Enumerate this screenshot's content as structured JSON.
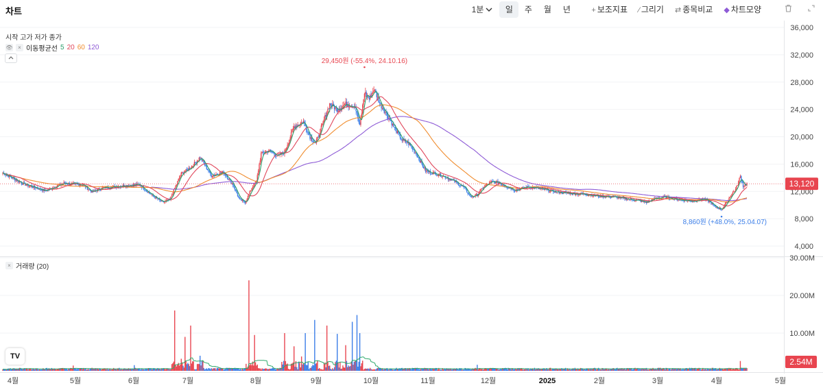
{
  "app": {
    "title": "차트"
  },
  "toolbar": {
    "interval": "1분",
    "periods": [
      "일",
      "주",
      "월",
      "년"
    ],
    "active_period": "일",
    "indicators": "보조지표",
    "draw": "그리기",
    "compare": "종목비교",
    "chart_style": "차트모양",
    "icons": [
      "chevron-down-icon",
      "plus-icon",
      "pencil-icon",
      "compare-icon",
      "diamond-icon",
      "trash-icon",
      "expand-icon"
    ]
  },
  "legend": {
    "ohlc": "시작 고가 저가 종가",
    "ma_label": "이동평균선",
    "ma_periods": [
      {
        "text": "5",
        "color": "#2a9d6b"
      },
      {
        "text": "20",
        "color": "#e0455a"
      },
      {
        "text": "60",
        "color": "#f08c2e"
      },
      {
        "text": "120",
        "color": "#8e5bd6"
      }
    ],
    "volume_label": "거래량 (20)"
  },
  "annotations": {
    "high": "29,450원 (-55.4%, 24.10.16)",
    "low": "8,860원 (+48.0%, 25.04.07)"
  },
  "price_badge": "13,120",
  "volume_badge": "2.54M",
  "logo_text": "TV",
  "colors": {
    "up": "#e8454f",
    "down": "#3b7ee8",
    "ma5": "#2a9d6b",
    "ma20": "#e0455a",
    "ma60": "#f08c2e",
    "ma120": "#8e5bd6",
    "vol_ma": "#2aa86a"
  },
  "chart_data": {
    "type": "candlestick",
    "price_axis": {
      "ticks": [
        "36,000",
        "32,000",
        "28,000",
        "24,000",
        "20,000",
        "16,000",
        "12,000",
        "8,000",
        "4,000"
      ],
      "range": [
        2600,
        36000
      ]
    },
    "volume_axis": {
      "ticks": [
        "30.00M",
        "20.00M",
        "10.00M"
      ],
      "range": [
        0,
        30000000
      ]
    },
    "x_labels": [
      "4월",
      "5월",
      "6월",
      "7월",
      "8월",
      "9월",
      "10월",
      "11월",
      "12월",
      "2025",
      "2월",
      "3월",
      "4월",
      "5월"
    ],
    "last_price": 13120,
    "period_high": 29450,
    "period_low": 8860,
    "close_path": [
      [
        0,
        14700
      ],
      [
        22,
        13100
      ],
      [
        45,
        12100
      ],
      [
        65,
        13200
      ],
      [
        85,
        13000
      ],
      [
        95,
        11900
      ],
      [
        105,
        12500
      ],
      [
        125,
        12800
      ],
      [
        145,
        13000
      ],
      [
        160,
        11300
      ],
      [
        170,
        10400
      ],
      [
        178,
        10800
      ],
      [
        183,
        12500
      ],
      [
        190,
        14600
      ],
      [
        200,
        15500
      ],
      [
        210,
        17000
      ],
      [
        222,
        14300
      ],
      [
        235,
        14800
      ],
      [
        245,
        13000
      ],
      [
        252,
        10800
      ],
      [
        258,
        10400
      ],
      [
        265,
        12500
      ],
      [
        270,
        13500
      ],
      [
        275,
        17500
      ],
      [
        283,
        18000
      ],
      [
        293,
        17200
      ],
      [
        300,
        17800
      ],
      [
        310,
        21500
      ],
      [
        320,
        22200
      ],
      [
        327,
        20000
      ],
      [
        333,
        19000
      ],
      [
        342,
        22500
      ],
      [
        348,
        24800
      ],
      [
        356,
        24000
      ],
      [
        365,
        24800
      ],
      [
        375,
        24500
      ],
      [
        380,
        21500
      ],
      [
        385,
        26500
      ],
      [
        390,
        25500
      ],
      [
        395,
        27000
      ],
      [
        402,
        24700
      ],
      [
        410,
        23000
      ],
      [
        418,
        21000
      ],
      [
        425,
        19500
      ],
      [
        432,
        19000
      ],
      [
        440,
        17500
      ],
      [
        450,
        15000
      ],
      [
        460,
        14600
      ],
      [
        470,
        14200
      ],
      [
        480,
        13500
      ],
      [
        490,
        12700
      ],
      [
        498,
        11200
      ],
      [
        505,
        11500
      ],
      [
        512,
        12700
      ],
      [
        520,
        13400
      ],
      [
        528,
        13300
      ],
      [
        535,
        12800
      ],
      [
        545,
        12200
      ],
      [
        560,
        12700
      ],
      [
        575,
        12300
      ],
      [
        590,
        11900
      ],
      [
        605,
        11700
      ],
      [
        620,
        11600
      ],
      [
        635,
        11300
      ],
      [
        650,
        11200
      ],
      [
        665,
        10900
      ],
      [
        675,
        10700
      ],
      [
        685,
        10400
      ],
      [
        695,
        11000
      ],
      [
        705,
        11200
      ],
      [
        715,
        10900
      ],
      [
        725,
        10700
      ],
      [
        735,
        10600
      ],
      [
        745,
        10900
      ],
      [
        752,
        10500
      ],
      [
        758,
        9700
      ],
      [
        765,
        9400
      ],
      [
        770,
        10300
      ],
      [
        775,
        11500
      ],
      [
        780,
        12300
      ],
      [
        785,
        14200
      ],
      [
        788,
        12800
      ],
      [
        792,
        13120
      ]
    ],
    "volume_spikes_millions": [
      [
        75,
        1.4
      ],
      [
        140,
        1.5
      ],
      [
        183,
        16.0
      ],
      [
        190,
        3.2
      ],
      [
        194,
        9.0
      ],
      [
        200,
        12.0
      ],
      [
        210,
        4.0
      ],
      [
        262,
        24.0
      ],
      [
        268,
        9.5
      ],
      [
        300,
        10.0
      ],
      [
        310,
        6.5
      ],
      [
        318,
        3.8
      ],
      [
        322,
        10.0
      ],
      [
        332,
        13.5
      ],
      [
        345,
        12.0
      ],
      [
        356,
        9.8
      ],
      [
        365,
        6.8
      ],
      [
        372,
        13.0
      ],
      [
        377,
        14.8
      ],
      [
        380,
        10.0
      ],
      [
        505,
        1.6
      ],
      [
        785,
        2.6
      ],
      [
        795,
        2.54
      ]
    ],
    "moving_averages": [
      "MA5",
      "MA20",
      "MA60",
      "MA120"
    ]
  }
}
